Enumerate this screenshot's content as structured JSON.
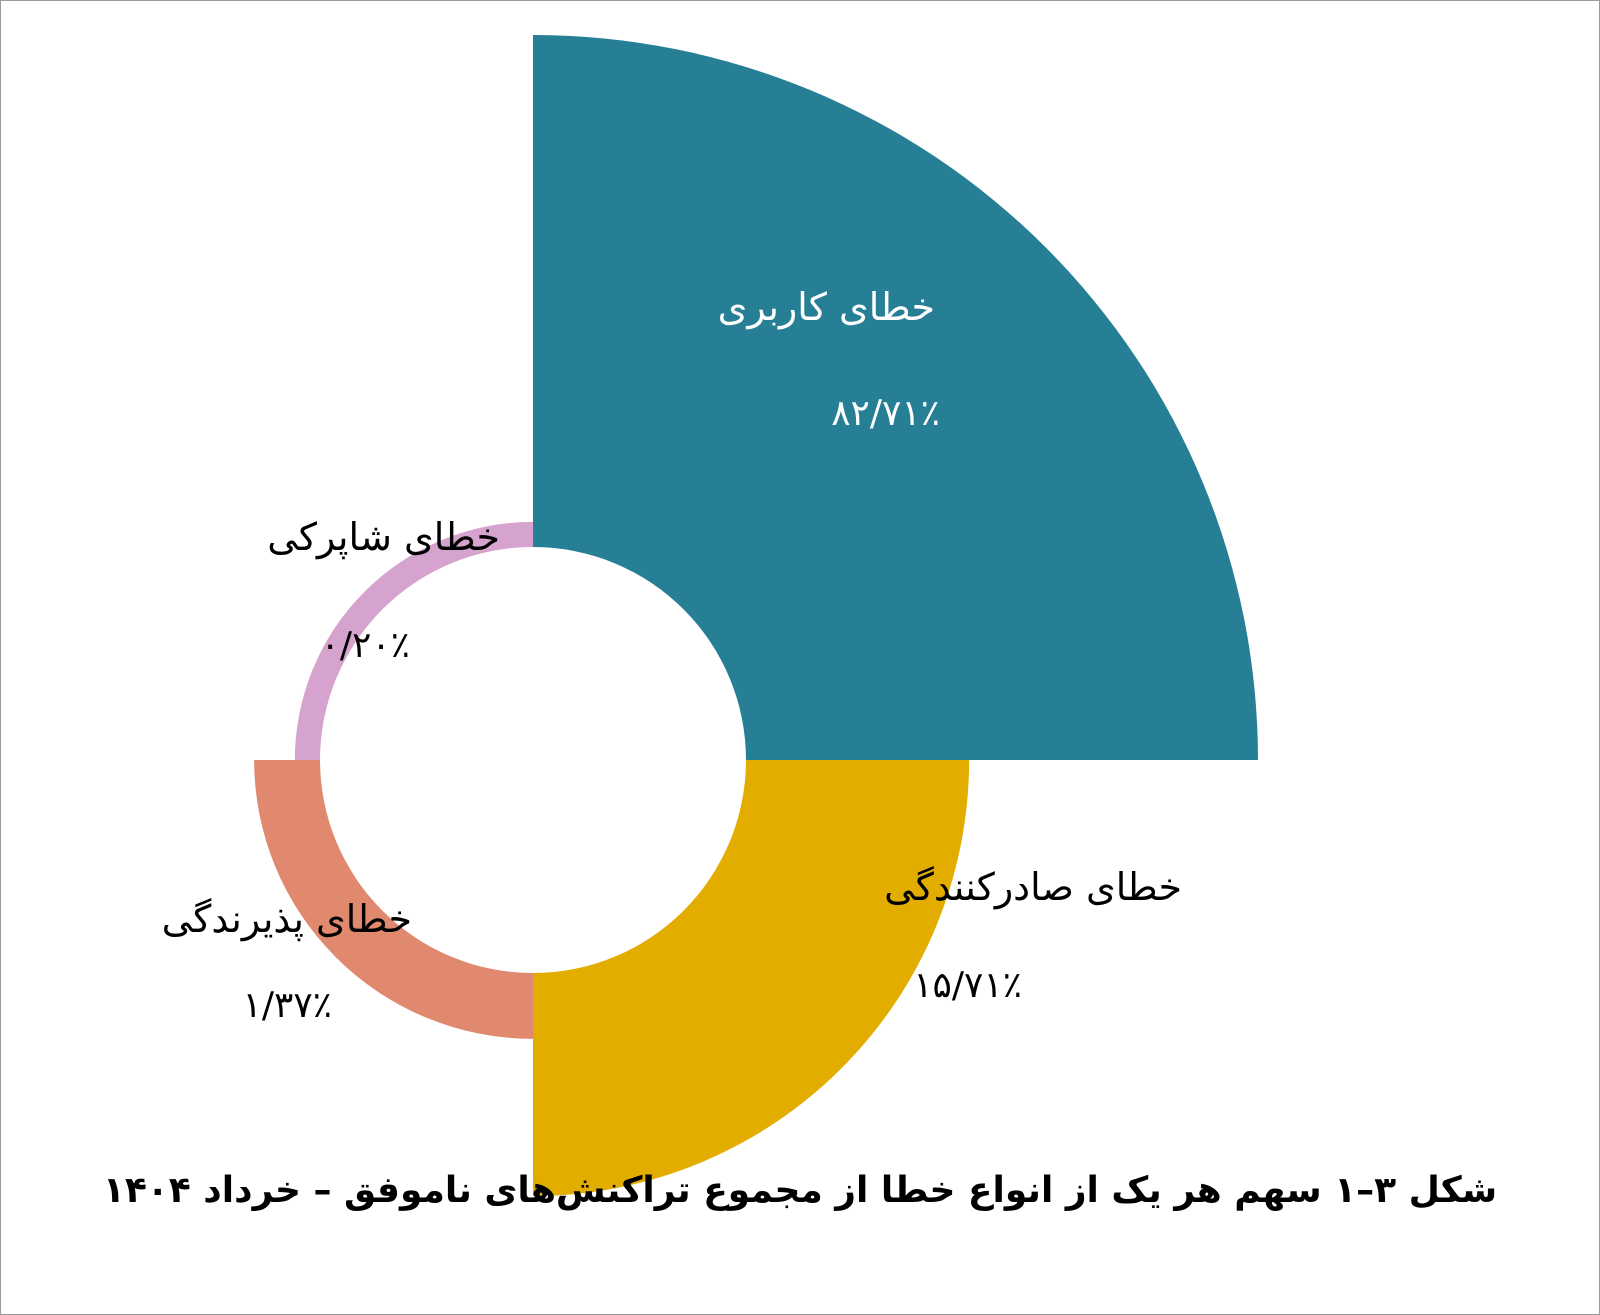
{
  "chart_data": {
    "type": "pie",
    "style": "variable-radius-polar-area",
    "slices": [
      {
        "label": "خطای کاربری",
        "value_text": "۸۲/۷۱٪",
        "value": 82.71,
        "color": "#277f96"
      },
      {
        "label": "خطای صادرکنندگی",
        "value_text": "۱۵/۷۱٪",
        "value": 15.71,
        "color": "#e3ad00"
      },
      {
        "label": "خطای پذیرندگی",
        "value_text": "۱/۳۷٪",
        "value": 1.37,
        "color": "#e0896e"
      },
      {
        "label": "خطای شاپرکی",
        "value_text": "۰/۲۰٪",
        "value": 0.2,
        "color": "#d6a3cf"
      }
    ],
    "caption": "شکل ۳–۱ سهم هر یک از انواع خطا از مجموع تراکنش‌های ناموفق – خرداد ۱۴۰۴"
  }
}
